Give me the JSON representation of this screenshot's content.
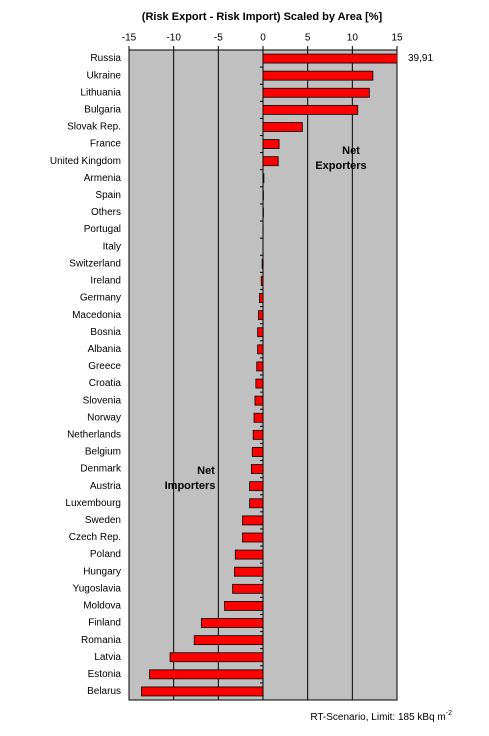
{
  "chart_data": {
    "type": "bar",
    "orientation": "horizontal",
    "title": "(Risk Export - Risk Import) Scaled by Area [%]",
    "categories": [
      "Russia",
      "Ukraine",
      "Lithuania",
      "Bulgaria",
      "Slovak Rep.",
      "France",
      "United Kingdom",
      "Armenia",
      "Spain",
      "Others",
      "Portugal",
      "Italy",
      "Switzerland",
      "Ireland",
      "Germany",
      "Macedonia",
      "Bosnia",
      "Albania",
      "Greece",
      "Croatia",
      "Slovenia",
      "Norway",
      "Netherlands",
      "Belgium",
      "Denmark",
      "Austria",
      "Luxembourg",
      "Sweden",
      "Czech Rep.",
      "Poland",
      "Hungary",
      "Yugoslavia",
      "Moldova",
      "Finland",
      "Romania",
      "Latvia",
      "Estonia",
      "Belarus"
    ],
    "values": [
      39.91,
      12.3,
      11.9,
      10.6,
      4.4,
      1.8,
      1.7,
      0.1,
      0.05,
      0.05,
      0.02,
      0,
      -0.1,
      -0.2,
      -0.4,
      -0.5,
      -0.6,
      -0.6,
      -0.7,
      -0.8,
      -0.9,
      -1.0,
      -1.1,
      -1.2,
      -1.3,
      -1.5,
      -1.5,
      -2.3,
      -2.3,
      -3.1,
      -3.2,
      -3.4,
      -4.3,
      -6.9,
      -7.7,
      -10.4,
      -12.7,
      -13.6
    ],
    "value_labels": [
      "39,91",
      null,
      null,
      null,
      null,
      null,
      null,
      null,
      null,
      null,
      null,
      null,
      null,
      null,
      null,
      null,
      null,
      null,
      null,
      null,
      null,
      null,
      null,
      null,
      null,
      null,
      null,
      null,
      null,
      null,
      null,
      null,
      null,
      null,
      null,
      null,
      null,
      null
    ],
    "color": "#ff0000",
    "xlim": [
      -15,
      15
    ],
    "xticks": [
      -15,
      -10,
      -5,
      0,
      5,
      10,
      15
    ],
    "grid": true,
    "annotations": [
      {
        "lines": [
          "Net",
          "Exporters"
        ]
      },
      {
        "lines": [
          "Net",
          "Importers"
        ]
      }
    ],
    "footnote": {
      "text": "RT-Scenario, Limit: 185 kBq m",
      "superscript": "-2"
    }
  }
}
